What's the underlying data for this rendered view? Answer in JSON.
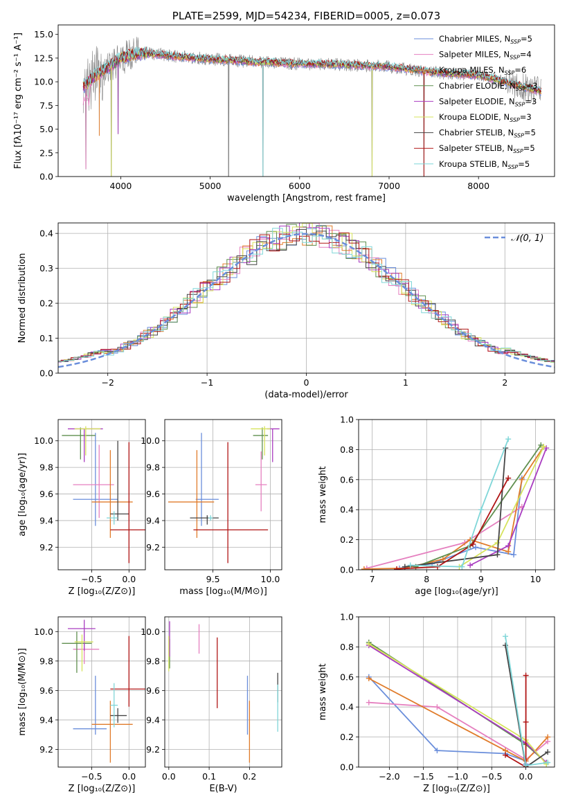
{
  "colors": {
    "chabrier_miles": "#6a8edb",
    "salpeter_miles": "#e57fbf",
    "kroupa_miles": "#e07b2a",
    "chabrier_elodie": "#5f8f4f",
    "salpeter_elodie": "#a93cc0",
    "kroupa_elodie": "#d6e35c",
    "chabrier_stelib": "#444444",
    "salpeter_stelib": "#b01414",
    "kroupa_stelib": "#7fd6d8",
    "data_spectrum": "#808080",
    "normal_curve": "#6a8edb",
    "grid": "#b0b0b0"
  },
  "chart_data": [
    {
      "id": "spectrum",
      "type": "line",
      "title": "PLATE=2599, MJD=54234, FIBERID=0005, z=0.073",
      "xlabel": "wavelength [Angstrom, rest frame]",
      "ylabel": "Flux [fλ10⁻¹⁷ erg cm⁻² s⁻¹ A⁻¹]",
      "xlim": [
        3300,
        8850
      ],
      "ylim": [
        0,
        16
      ],
      "xticks": [
        4000,
        5000,
        6000,
        7000,
        8000
      ],
      "yticks": [
        0.0,
        2.5,
        5.0,
        7.5,
        10.0,
        12.5,
        15.0
      ],
      "grid": false,
      "legend_position": "top-right",
      "legend": [
        {
          "label": "Chabrier MILES, N",
          "sub": "SSP",
          "tail": "=5",
          "color": "chabrier_miles"
        },
        {
          "label": "Salpeter MILES, N",
          "sub": "SSP",
          "tail": "=4",
          "color": "salpeter_miles"
        },
        {
          "label": "Kroupa MILES, N",
          "sub": "SSP",
          "tail": "=6",
          "color": "kroupa_miles"
        },
        {
          "label": "Chabrier ELODIE, N",
          "sub": "SSP",
          "tail": "=3",
          "color": "chabrier_elodie"
        },
        {
          "label": "Salpeter ELODIE, N",
          "sub": "SSP",
          "tail": "=3",
          "color": "salpeter_elodie"
        },
        {
          "label": "Kroupa ELODIE, N",
          "sub": "SSP",
          "tail": "=3",
          "color": "kroupa_elodie"
        },
        {
          "label": "Chabrier STELIB, N",
          "sub": "SSP",
          "tail": "=5",
          "color": "chabrier_stelib"
        },
        {
          "label": "Salpeter STELIB, N",
          "sub": "SSP",
          "tail": "=5",
          "color": "salpeter_stelib"
        },
        {
          "label": "Kroupa STELIB, N",
          "sub": "SSP",
          "tail": "=5",
          "color": "kroupa_stelib"
        }
      ],
      "continuum_model": {
        "x": [
          3580,
          3700,
          3800,
          3900,
          4000,
          4200,
          4400,
          4700,
          5000,
          5500,
          6000,
          6500,
          7000,
          7500,
          8000,
          8500,
          8700
        ],
        "y": [
          9.5,
          10.5,
          11.2,
          11.8,
          12.5,
          13.0,
          12.9,
          12.6,
          12.4,
          12.1,
          11.9,
          11.8,
          11.6,
          11.0,
          10.7,
          9.5,
          9.0
        ]
      },
      "absorption_lines": [
        {
          "x": 3610,
          "y": 0.8
        },
        {
          "x": 3760,
          "y": 4.3
        },
        {
          "x": 3895,
          "y": 0.0
        },
        {
          "x": 3970,
          "y": 4.5
        },
        {
          "x": 5205,
          "y": 0.0
        },
        {
          "x": 5590,
          "y": 0.0
        },
        {
          "x": 6810,
          "y": 0.0
        },
        {
          "x": 7390,
          "y": 0.0
        }
      ]
    },
    {
      "id": "residuals",
      "type": "histogram",
      "xlabel": "(data-model)/error",
      "ylabel": "Normed distribution",
      "xlim": [
        -2.5,
        2.5
      ],
      "ylim": [
        0,
        0.43
      ],
      "xticks": [
        -2,
        -1,
        0,
        1,
        2
      ],
      "yticks": [
        0.0,
        0.1,
        0.2,
        0.3,
        0.4
      ],
      "grid": true,
      "legend_position": "top-right",
      "reference_label": "𝒩(0, 1)",
      "reference": {
        "mean": 0,
        "sigma": 1
      },
      "bin_width": 0.1
    },
    {
      "id": "age_vs_z",
      "type": "errorbar",
      "xlabel": "Z [log₁₀(Z/Z⊙)]",
      "ylabel": "age  [log₁₀(age/yr)]",
      "xlim": [
        -0.95,
        0.22
      ],
      "ylim": [
        9.03,
        10.16
      ],
      "xticks": [
        -0.5,
        0.0
      ],
      "yticks": [
        9.2,
        9.4,
        9.6,
        9.8,
        10.0
      ],
      "grid": true,
      "points": [
        {
          "s": "chabrier_miles",
          "x": -0.45,
          "xe": [
            0.3,
            0.3
          ],
          "y": 9.56,
          "ye": [
            0.2,
            0.5
          ]
        },
        {
          "s": "salpeter_miles",
          "x": -0.4,
          "xe": [
            0.35,
            0.2
          ],
          "y": 9.67,
          "ye": [
            0.25,
            0.3
          ]
        },
        {
          "s": "kroupa_miles",
          "x": -0.25,
          "xe": [
            0.25,
            0.3
          ],
          "y": 9.54,
          "ye": [
            0.27,
            0.39
          ]
        },
        {
          "s": "chabrier_elodie",
          "x": -0.65,
          "xe": [
            0.25,
            0.2
          ],
          "y": 10.04,
          "ye": [
            0.18,
            0.06
          ]
        },
        {
          "s": "salpeter_elodie",
          "x": -0.6,
          "xe": [
            0.22,
            0.25
          ],
          "y": 10.09,
          "ye": [
            0.25,
            0.0
          ]
        },
        {
          "s": "kroupa_elodie",
          "x": -0.58,
          "xe": [
            0.15,
            0.2
          ],
          "y": 10.09,
          "ye": [
            0.2,
            0.02
          ]
        },
        {
          "s": "chabrier_stelib",
          "x": -0.15,
          "xe": [
            0.1,
            0.15
          ],
          "y": 9.45,
          "ye": [
            0.05,
            0.55
          ]
        },
        {
          "s": "salpeter_stelib",
          "x": 0.0,
          "xe": [
            0.25,
            0.22
          ],
          "y": 9.33,
          "ye": [
            0.25,
            0.66
          ]
        },
        {
          "s": "kroupa_stelib",
          "x": -0.2,
          "xe": [
            0.1,
            0.05
          ],
          "y": 9.42,
          "ye": [
            0.05,
            0.05
          ]
        }
      ]
    },
    {
      "id": "age_vs_mass",
      "type": "errorbar",
      "xlabel": "mass [log₁₀(M/M⊙)]",
      "ylabel": "",
      "xlim": [
        9.08,
        10.1
      ],
      "ylim": [
        9.03,
        10.16
      ],
      "xticks": [
        9.5,
        10.0
      ],
      "yticks": [
        9.2,
        9.4,
        9.6,
        9.8,
        10.0
      ],
      "grid": true,
      "points": [
        {
          "s": "chabrier_miles",
          "x": 9.4,
          "xe": [
            0.05,
            0.15
          ],
          "y": 9.56,
          "ye": [
            0.2,
            0.5
          ]
        },
        {
          "s": "salpeter_miles",
          "x": 9.92,
          "xe": [
            0.05,
            0.05
          ],
          "y": 9.67,
          "ye": [
            0.2,
            0.25
          ]
        },
        {
          "s": "kroupa_miles",
          "x": 9.36,
          "xe": [
            0.25,
            0.15
          ],
          "y": 9.54,
          "ye": [
            0.27,
            0.39
          ]
        },
        {
          "s": "chabrier_elodie",
          "x": 9.93,
          "xe": [
            0.08,
            0.05
          ],
          "y": 10.04,
          "ye": [
            0.18,
            0.06
          ]
        },
        {
          "s": "salpeter_elodie",
          "x": 10.02,
          "xe": [
            0.05,
            0.06
          ],
          "y": 10.09,
          "ye": [
            0.25,
            0.0
          ]
        },
        {
          "s": "kroupa_elodie",
          "x": 9.95,
          "xe": [
            0.12,
            0.05
          ],
          "y": 10.09,
          "ye": [
            0.2,
            0.02
          ]
        },
        {
          "s": "chabrier_stelib",
          "x": 9.45,
          "xe": [
            0.15,
            0.1
          ],
          "y": 9.42,
          "ye": [
            0.05,
            0.02
          ]
        },
        {
          "s": "salpeter_stelib",
          "x": 9.63,
          "xe": [
            0.3,
            0.35
          ],
          "y": 9.33,
          "ye": [
            0.25,
            0.66
          ]
        },
        {
          "s": "kroupa_stelib",
          "x": 9.48,
          "xe": [
            0.02,
            0.02
          ],
          "y": 9.42,
          "ye": [
            0.02,
            0.02
          ]
        }
      ]
    },
    {
      "id": "weight_vs_age",
      "type": "line",
      "xlabel": "age  [log₁₀(age/yr)]",
      "ylabel": "mass weight",
      "xlim": [
        6.75,
        10.35
      ],
      "ylim": [
        0,
        1.0
      ],
      "xticks": [
        7,
        8,
        9,
        10
      ],
      "yticks": [
        0.0,
        0.2,
        0.4,
        0.6,
        0.8,
        1.0
      ],
      "grid": true,
      "series": [
        {
          "s": "chabrier_miles",
          "x": [
            7.5,
            8.1,
            8.9,
            9.6,
            9.75
          ],
          "y": [
            0.01,
            0.04,
            0.15,
            0.1,
            0.61
          ]
        },
        {
          "s": "salpeter_miles",
          "x": [
            6.9,
            8.7,
            9.75
          ],
          "y": [
            0.01,
            0.18,
            0.42
          ]
        },
        {
          "s": "kroupa_miles",
          "x": [
            6.85,
            7.6,
            8.3,
            8.8,
            9.5,
            9.75,
            10.15
          ],
          "y": [
            0.005,
            0.01,
            0.07,
            0.2,
            0.12,
            0.6,
            0.82
          ]
        },
        {
          "s": "chabrier_elodie",
          "x": [
            7.8,
            8.8,
            10.1
          ],
          "y": [
            0.02,
            0.16,
            0.83
          ]
        },
        {
          "s": "salpeter_elodie",
          "x": [
            8.8,
            9.5,
            10.2
          ],
          "y": [
            0.03,
            0.16,
            0.81
          ]
        },
        {
          "s": "kroupa_elodie",
          "x": [
            8.6,
            9.3,
            10.15
          ],
          "y": [
            0.02,
            0.18,
            0.82
          ]
        },
        {
          "s": "chabrier_stelib",
          "x": [
            7.6,
            9.3,
            9.45
          ],
          "y": [
            0.02,
            0.1,
            0.81
          ]
        },
        {
          "s": "salpeter_stelib",
          "x": [
            7.45,
            8.2,
            8.85,
            9.5
          ],
          "y": [
            0.005,
            0.02,
            0.17,
            0.61
          ]
        },
        {
          "s": "kroupa_stelib",
          "x": [
            7.7,
            8.65,
            9.0,
            9.5
          ],
          "y": [
            0.03,
            0.02,
            0.4,
            0.87
          ]
        }
      ]
    },
    {
      "id": "mass_vs_z",
      "type": "errorbar",
      "xlabel": "Z [log₁₀(Z/Z⊙)]",
      "ylabel": "mass [log₁₀(M/M⊙)]",
      "xlim": [
        -0.95,
        0.22
      ],
      "ylim": [
        9.08,
        10.1
      ],
      "xticks": [
        -0.5,
        0.0
      ],
      "yticks": [
        9.2,
        9.4,
        9.6,
        9.8,
        10.0
      ],
      "grid": true,
      "points": [
        {
          "s": "chabrier_miles",
          "x": -0.45,
          "xe": [
            0.3,
            0.15
          ],
          "y": 9.34,
          "ye": [
            0.04,
            0.36
          ]
        },
        {
          "s": "salpeter_miles",
          "x": -0.6,
          "xe": [
            0.15,
            0.2
          ],
          "y": 9.88,
          "ye": [
            0.1,
            0.05
          ]
        },
        {
          "s": "kroupa_miles",
          "x": -0.25,
          "xe": [
            0.25,
            0.3
          ],
          "y": 9.37,
          "ye": [
            0.26,
            0.16
          ]
        },
        {
          "s": "chabrier_elodie",
          "x": -0.7,
          "xe": [
            0.2,
            0.2
          ],
          "y": 9.92,
          "ye": [
            0.2,
            0.08
          ]
        },
        {
          "s": "salpeter_elodie",
          "x": -0.6,
          "xe": [
            0.22,
            0.15
          ],
          "y": 10.02,
          "ye": [
            0.15,
            0.06
          ]
        },
        {
          "s": "kroupa_elodie",
          "x": -0.63,
          "xe": [
            0.1,
            0.15
          ],
          "y": 9.93,
          "ye": [
            0.2,
            0.05
          ]
        },
        {
          "s": "chabrier_stelib",
          "x": -0.15,
          "xe": [
            0.1,
            0.12
          ],
          "y": 9.43,
          "ye": [
            0.05,
            0.05
          ]
        },
        {
          "s": "salpeter_stelib",
          "x": 0.0,
          "xe": [
            0.25,
            0.22
          ],
          "y": 9.61,
          "ye": [
            0.12,
            0.36
          ]
        },
        {
          "s": "kroupa_stelib",
          "x": -0.2,
          "xe": [
            0.05,
            0.05
          ],
          "y": 9.5,
          "ye": [
            0.15,
            0.15
          ]
        }
      ]
    },
    {
      "id": "mass_vs_ebv",
      "type": "errorbar",
      "xlabel": "E(B-V)",
      "ylabel": "",
      "xlim": [
        -0.01,
        0.28
      ],
      "ylim": [
        9.08,
        10.1
      ],
      "xticks": [
        0.0,
        0.1,
        0.2
      ],
      "yticks": [
        9.2,
        9.4,
        9.6,
        9.8,
        10.0
      ],
      "grid": true,
      "points": [
        {
          "s": "chabrier_miles",
          "x": 0.195,
          "xe": [
            0,
            0
          ],
          "y": 9.5,
          "ye": [
            0.2,
            0.2
          ]
        },
        {
          "s": "salpeter_miles",
          "x": 0.075,
          "xe": [
            0,
            0
          ],
          "y": 9.95,
          "ye": [
            0.1,
            0.1
          ]
        },
        {
          "s": "kroupa_miles",
          "x": 0.2,
          "xe": [
            0,
            0
          ],
          "y": 9.31,
          "ye": [
            0.2,
            0.22
          ]
        },
        {
          "s": "chabrier_elodie",
          "x": 0.002,
          "xe": [
            0,
            0
          ],
          "y": 9.85,
          "ye": [
            0.1,
            0.1
          ]
        },
        {
          "s": "salpeter_elodie",
          "x": 0.002,
          "xe": [
            0,
            0
          ],
          "y": 9.95,
          "ye": [
            0.12,
            0.12
          ]
        },
        {
          "s": "kroupa_elodie",
          "x": 0.0,
          "xe": [
            0,
            0
          ],
          "y": 9.85,
          "ye": [
            0.12,
            0.12
          ]
        },
        {
          "s": "chabrier_stelib",
          "x": 0.27,
          "xe": [
            0,
            0
          ],
          "y": 9.62,
          "ye": [
            0.1,
            0.1
          ]
        },
        {
          "s": "salpeter_stelib",
          "x": 0.12,
          "xe": [
            0,
            0
          ],
          "y": 9.72,
          "ye": [
            0.24,
            0.24
          ]
        },
        {
          "s": "kroupa_stelib",
          "x": 0.27,
          "xe": [
            0,
            0
          ],
          "y": 9.48,
          "ye": [
            0.16,
            0.16
          ]
        }
      ]
    },
    {
      "id": "weight_vs_z",
      "type": "line",
      "xlabel": "Z [log₁₀(Z/Z⊙)]",
      "ylabel": "mass weight",
      "xlim": [
        -2.45,
        0.42
      ],
      "ylim": [
        0,
        1.0
      ],
      "xticks": [
        -2.0,
        -1.5,
        -1.0,
        -0.5,
        0.0
      ],
      "yticks": [
        0.0,
        0.2,
        0.4,
        0.6,
        0.8,
        1.0
      ],
      "grid": true,
      "series": [
        {
          "s": "chabrier_miles",
          "x": [
            -2.3,
            -1.3,
            -0.3,
            0.0,
            0.0
          ],
          "y": [
            0.6,
            0.11,
            0.09,
            0.04,
            0.02
          ]
        },
        {
          "s": "salpeter_miles",
          "x": [
            -2.3,
            -1.3,
            0.0,
            0.32
          ],
          "y": [
            0.43,
            0.4,
            0.05,
            0.17
          ]
        },
        {
          "s": "kroupa_miles",
          "x": [
            -2.3,
            -0.3,
            0.0,
            0.32
          ],
          "y": [
            0.59,
            0.11,
            0.04,
            0.2
          ]
        },
        {
          "s": "chabrier_elodie",
          "x": [
            -2.3,
            0.0,
            0.3
          ],
          "y": [
            0.83,
            0.15,
            0.03
          ]
        },
        {
          "s": "salpeter_elodie",
          "x": [
            -2.3,
            0.0,
            0.3
          ],
          "y": [
            0.81,
            0.16,
            0.03
          ]
        },
        {
          "s": "kroupa_elodie",
          "x": [
            -2.3,
            0.0,
            0.3
          ],
          "y": [
            0.82,
            0.18,
            0.02
          ]
        },
        {
          "s": "chabrier_stelib",
          "x": [
            -0.3,
            0.0,
            0.32
          ],
          "y": [
            0.81,
            0.0,
            0.1
          ]
        },
        {
          "s": "salpeter_stelib",
          "x": [
            0.0,
            0.0,
            0.0,
            -0.3,
            0.0
          ],
          "y": [
            0.61,
            0.3,
            0.0,
            0.08,
            0.0
          ]
        },
        {
          "s": "kroupa_stelib",
          "x": [
            -0.3,
            0.0,
            0.32
          ],
          "y": [
            0.87,
            0.01,
            0.03
          ]
        }
      ]
    }
  ]
}
